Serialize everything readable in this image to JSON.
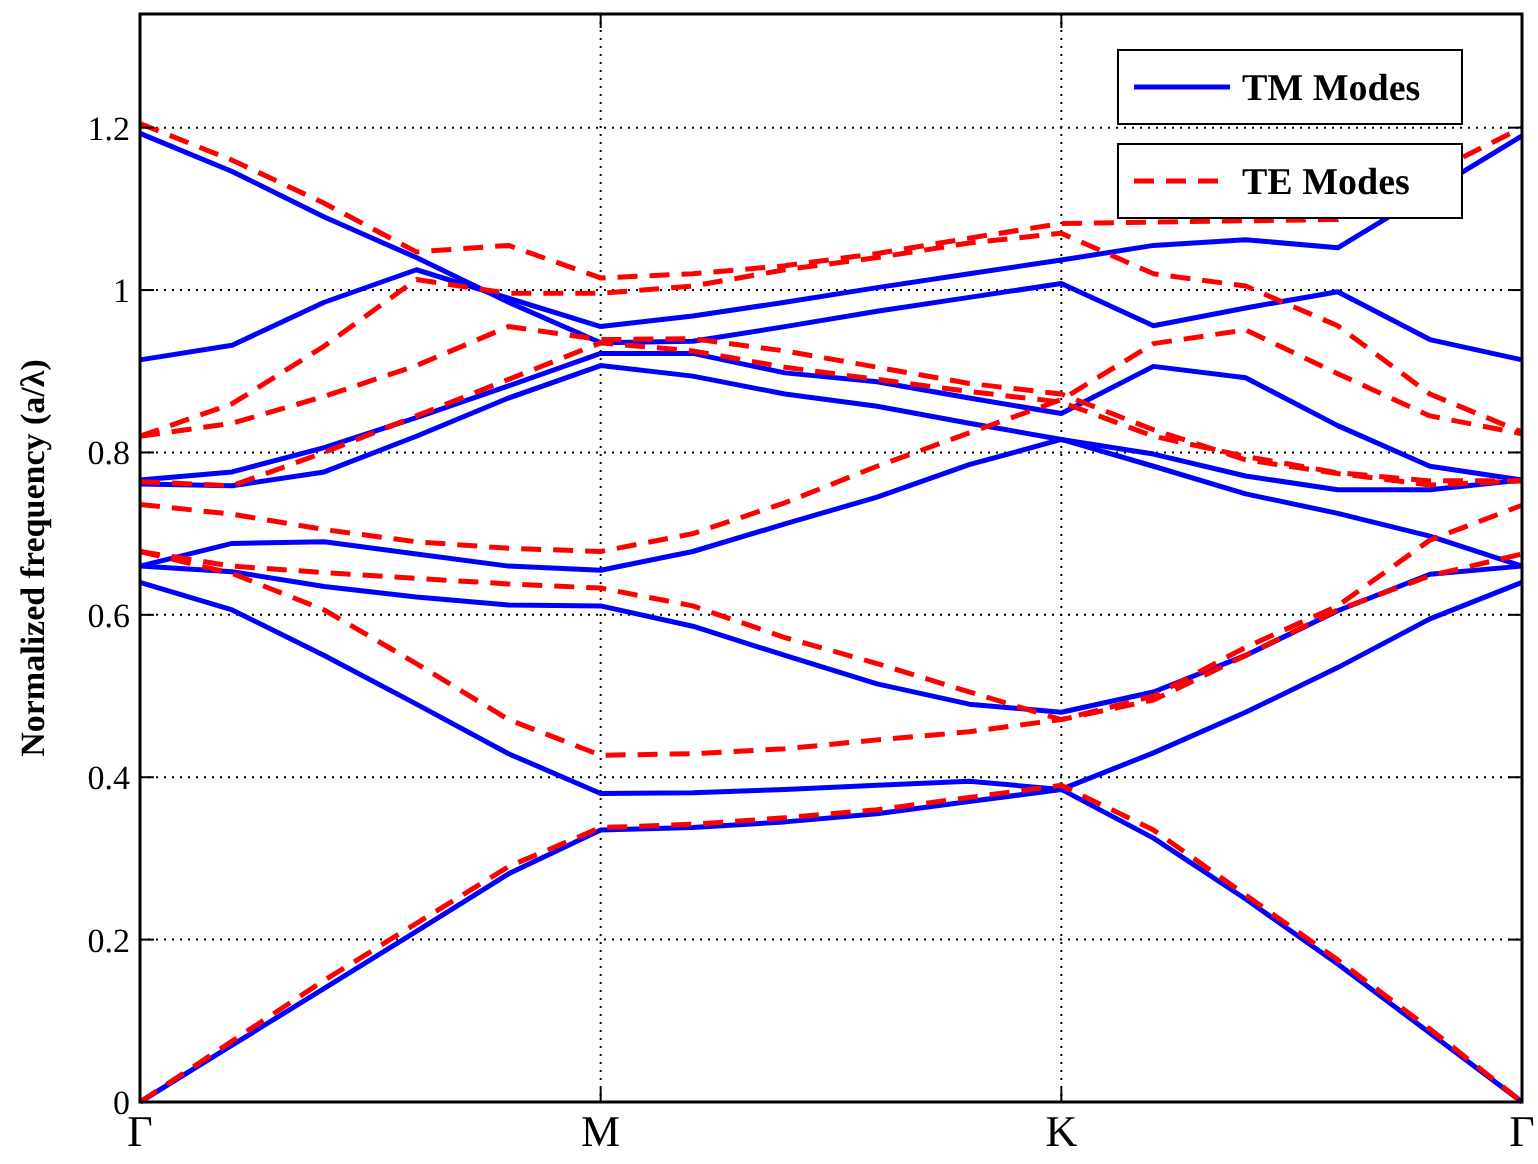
{
  "chart_data": {
    "type": "line",
    "ylabel": "Normalized frequency (a/λ)",
    "categories": [
      "Γ",
      null,
      null,
      null,
      null,
      "M",
      null,
      null,
      null,
      null,
      "K",
      null,
      null,
      null,
      null,
      "Γ"
    ],
    "ylim": [
      0,
      1.34
    ],
    "yticks": [
      0,
      0.2,
      0.4,
      0.6,
      0.8,
      1,
      1.2
    ],
    "grid": true,
    "legend": "top right",
    "series": [
      {
        "name": "TM Modes",
        "color": "#0000ff",
        "line_style": "solid",
        "values": [
          0,
          0.07,
          0.14,
          0.21,
          0.281,
          0.335,
          0.338,
          0.345,
          0.355,
          0.37,
          0.385,
          0.325,
          0.25,
          0.17,
          0.085,
          0
        ]
      },
      {
        "color": "#0000ff",
        "line_style": "solid",
        "values": [
          0.64,
          0.606,
          0.55,
          0.49,
          0.429,
          0.38,
          0.381,
          0.385,
          0.39,
          0.395,
          0.385,
          0.43,
          0.48,
          0.535,
          0.595,
          0.64
        ]
      },
      {
        "color": "#0000ff",
        "line_style": "solid",
        "values": [
          0.66,
          0.653,
          0.635,
          0.622,
          0.612,
          0.611,
          0.586,
          0.55,
          0.515,
          0.49,
          0.48,
          0.505,
          0.55,
          0.605,
          0.65,
          0.66
        ]
      },
      {
        "color": "#0000ff",
        "line_style": "solid",
        "values": [
          0.66,
          0.688,
          0.69,
          0.675,
          0.66,
          0.655,
          0.678,
          0.712,
          0.745,
          0.785,
          0.816,
          0.798,
          0.771,
          0.754,
          0.754,
          0.766
        ]
      },
      {
        "color": "#0000ff",
        "line_style": "solid",
        "values": [
          0.761,
          0.759,
          0.776,
          0.82,
          0.867,
          0.907,
          0.894,
          0.872,
          0.857,
          0.836,
          0.816,
          0.783,
          0.749,
          0.725,
          0.697,
          0.66
        ]
      },
      {
        "color": "#0000ff",
        "line_style": "solid",
        "values": [
          0.766,
          0.776,
          0.806,
          0.843,
          0.882,
          0.922,
          0.922,
          0.898,
          0.887,
          0.867,
          0.848,
          0.906,
          0.892,
          0.833,
          0.783,
          0.766
        ]
      },
      {
        "color": "#0000ff",
        "line_style": "solid",
        "values": [
          0.914,
          0.932,
          0.985,
          1.025,
          0.99,
          0.955,
          0.968,
          0.985,
          1.003,
          1.02,
          1.037,
          1.055,
          1.062,
          1.052,
          null,
          1.19
        ]
      },
      {
        "color": "#0000ff",
        "line_style": "solid",
        "values": [
          1.193,
          1.146,
          1.09,
          1.04,
          0.985,
          0.935,
          0.937,
          0.955,
          0.974,
          0.991,
          1.008,
          0.956,
          0.978,
          0.998,
          0.939,
          0.914
        ]
      },
      {
        "name": "TE Modes",
        "color": "#ff0000",
        "line_style": "dashed",
        "values": [
          0,
          0.075,
          0.15,
          0.22,
          0.29,
          0.338,
          0.342,
          0.35,
          0.36,
          0.375,
          0.39,
          0.335,
          0.255,
          0.175,
          0.09,
          0
        ]
      },
      {
        "color": "#ff0000",
        "line_style": "dashed",
        "values": [
          0.678,
          0.651,
          0.606,
          0.54,
          0.471,
          0.427,
          0.429,
          0.435,
          0.446,
          0.456,
          0.471,
          0.495,
          0.55,
          0.606,
          0.648,
          0.675
        ]
      },
      {
        "color": "#ff0000",
        "line_style": "dashed",
        "values": [
          0.678,
          0.66,
          0.652,
          0.645,
          0.638,
          0.633,
          0.611,
          0.572,
          0.54,
          0.505,
          0.471,
          0.5,
          0.56,
          0.611,
          0.692,
          0.735
        ]
      },
      {
        "color": "#ff0000",
        "line_style": "dashed",
        "values": [
          0.736,
          0.724,
          0.705,
          0.69,
          0.682,
          0.678,
          0.7,
          0.738,
          0.783,
          0.824,
          0.865,
          0.934,
          0.951,
          0.897,
          0.845,
          0.823
        ]
      },
      {
        "color": "#ff0000",
        "line_style": "dashed",
        "values": [
          0.764,
          0.759,
          0.8,
          0.845,
          0.89,
          0.935,
          0.925,
          0.905,
          0.89,
          0.875,
          0.862,
          0.82,
          0.795,
          0.775,
          0.765,
          0.765
        ]
      },
      {
        "color": "#ff0000",
        "line_style": "dashed",
        "values": [
          0.82,
          0.836,
          0.869,
          0.907,
          0.955,
          0.939,
          0.94,
          0.925,
          0.905,
          0.885,
          0.872,
          0.828,
          0.791,
          0.774,
          0.76,
          0.765
        ]
      },
      {
        "color": "#ff0000",
        "line_style": "dashed",
        "values": [
          0.82,
          0.86,
          0.931,
          1.013,
          0.996,
          0.996,
          1.005,
          1.025,
          1.04,
          1.058,
          1.07,
          1.02,
          1.005,
          0.956,
          0.872,
          0.825
        ]
      },
      {
        "color": "#ff0000",
        "line_style": "dashed",
        "values": [
          1.205,
          1.16,
          1.107,
          1.047,
          1.055,
          1.015,
          1.02,
          1.03,
          1.045,
          1.064,
          1.082,
          null,
          null,
          1.087,
          null,
          1.2
        ]
      }
    ]
  }
}
